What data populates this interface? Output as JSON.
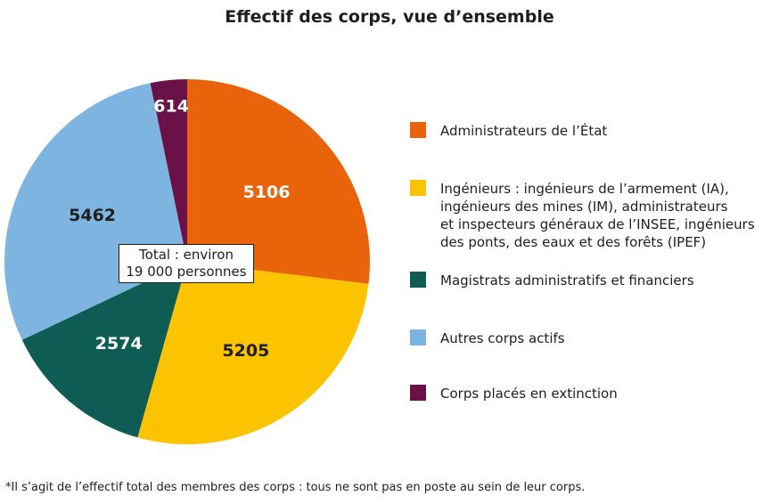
{
  "title": "Effectif des corps, vue d’ensemble",
  "total_label": "Total : environ 19 000 personnes",
  "total_line1": "Total : environ",
  "total_line2": "19 000 personnes",
  "footnote": "*Il s’agit de l’effectif total des membres des corps : tous ne sont pas en poste au sein de leur corps.",
  "chart_data": {
    "type": "pie",
    "title": "Effectif des corps, vue d’ensemble",
    "slices": [
      {
        "label": "Administrateurs de l’État",
        "value": 5106,
        "color": "#e8630a"
      },
      {
        "label": "Ingénieurs : ingénieurs de l’armement (IA), ingénieurs des mines (IM), administrateurs et inspecteurs généraux de l’INSEE, ingénieurs des ponts, des eaux et des forêts (IPEF)",
        "value": 5205,
        "color": "#fcc400"
      },
      {
        "label": "Magistrats administratifs et financiers",
        "value": 2574,
        "color": "#0e5c54"
      },
      {
        "label": "Autres corps actifs",
        "value": 5462,
        "color": "#7db4e0"
      },
      {
        "label": "Corps placés en extinction",
        "value": 614,
        "color": "#6a1248"
      }
    ],
    "legend_position": "right"
  },
  "legend": [
    {
      "lines": [
        "Administrateurs de l’État"
      ],
      "color": "#e8630a"
    },
    {
      "lines": [
        "Ingénieurs : ingénieurs de l’armement (IA),",
        "ingénieurs des mines (IM), administrateurs",
        "et inspecteurs généraux de l’INSEE, ingénieurs",
        "des ponts, des eaux et des forêts (IPEF)"
      ],
      "color": "#fcc400"
    },
    {
      "lines": [
        "Magistrats administratifs et financiers"
      ],
      "color": "#0e5c54"
    },
    {
      "lines": [
        "Autres corps actifs"
      ],
      "color": "#7db4e0"
    },
    {
      "lines": [
        "Corps placés en extinction"
      ],
      "color": "#6a1248"
    }
  ]
}
